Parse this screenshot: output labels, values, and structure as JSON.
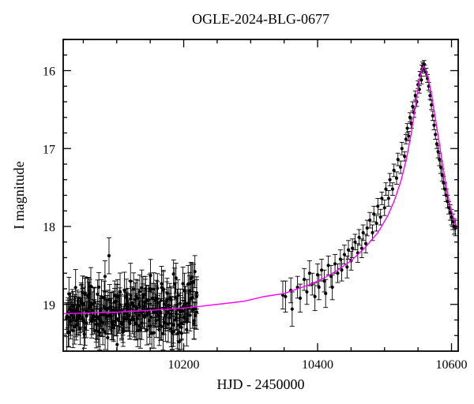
{
  "chart": {
    "type": "scatter+line",
    "title": "OGLE-2024-BLG-0677",
    "title_fontsize": 18,
    "xlabel": "HJD - 2450000",
    "ylabel": "I magnitude",
    "axis_label_fontsize": 18,
    "tick_label_fontsize": 16,
    "xlim": [
      10020,
      10610
    ],
    "ylim": [
      19.6,
      15.6
    ],
    "xticks_major": [
      10200,
      10400,
      10600
    ],
    "xticks_minor_step": 50,
    "yticks_major": [
      16,
      17,
      18,
      19
    ],
    "yticks_minor_step": 0.2,
    "background_color": "#ffffff",
    "frame_color": "#000000",
    "frame_width": 1.8,
    "major_tick_len": 10,
    "minor_tick_len": 5,
    "model_curve": {
      "color": "#ff00ff",
      "width": 1.4,
      "points": [
        [
          10020,
          19.12
        ],
        [
          10060,
          19.11
        ],
        [
          10100,
          19.1
        ],
        [
          10140,
          19.08
        ],
        [
          10180,
          19.06
        ],
        [
          10210,
          19.04
        ],
        [
          10250,
          19.0
        ],
        [
          10290,
          18.96
        ],
        [
          10320,
          18.9
        ],
        [
          10350,
          18.86
        ],
        [
          10370,
          18.8
        ],
        [
          10390,
          18.74
        ],
        [
          10410,
          18.66
        ],
        [
          10430,
          18.56
        ],
        [
          10450,
          18.44
        ],
        [
          10470,
          18.28
        ],
        [
          10490,
          18.08
        ],
        [
          10505,
          17.86
        ],
        [
          10515,
          17.66
        ],
        [
          10525,
          17.4
        ],
        [
          10533,
          17.12
        ],
        [
          10540,
          16.8
        ],
        [
          10546,
          16.46
        ],
        [
          10551,
          16.18
        ],
        [
          10555,
          16.0
        ],
        [
          10558,
          15.94
        ],
        [
          10561,
          15.98
        ],
        [
          10565,
          16.08
        ],
        [
          10570,
          16.3
        ],
        [
          10576,
          16.62
        ],
        [
          10583,
          17.0
        ],
        [
          10590,
          17.38
        ],
        [
          10597,
          17.7
        ],
        [
          10604,
          17.92
        ],
        [
          10610,
          18.04
        ]
      ]
    },
    "data_points": {
      "marker_color": "#000000",
      "marker_radius": 2.1,
      "errorbar_color": "#000000",
      "errorbar_width": 0.9,
      "errorbar_cap": 3,
      "cluster_dense": {
        "x_start": 10025,
        "x_end": 10220,
        "x_step": 2,
        "n_per_x": 3,
        "base_line_from_model": true,
        "scatter_sigma": 0.18,
        "yerr": 0.2
      },
      "explicit": [
        [
          10348,
          18.88,
          0.18
        ],
        [
          10352,
          18.9,
          0.2
        ],
        [
          10360,
          18.82,
          0.16
        ],
        [
          10362,
          19.06,
          0.22
        ],
        [
          10370,
          18.78,
          0.14
        ],
        [
          10374,
          18.92,
          0.18
        ],
        [
          10380,
          18.68,
          0.14
        ],
        [
          10384,
          18.84,
          0.16
        ],
        [
          10388,
          18.6,
          0.16
        ],
        [
          10392,
          18.74,
          0.14
        ],
        [
          10396,
          18.9,
          0.18
        ],
        [
          10400,
          18.62,
          0.14
        ],
        [
          10402,
          18.78,
          0.16
        ],
        [
          10406,
          18.56,
          0.14
        ],
        [
          10410,
          18.7,
          0.14
        ],
        [
          10412,
          18.86,
          0.18
        ],
        [
          10416,
          18.5,
          0.12
        ],
        [
          10420,
          18.64,
          0.14
        ],
        [
          10422,
          18.78,
          0.16
        ],
        [
          10426,
          18.48,
          0.12
        ],
        [
          10430,
          18.6,
          0.12
        ],
        [
          10434,
          18.42,
          0.12
        ],
        [
          10436,
          18.56,
          0.14
        ],
        [
          10440,
          18.36,
          0.12
        ],
        [
          10444,
          18.52,
          0.14
        ],
        [
          10446,
          18.3,
          0.12
        ],
        [
          10450,
          18.44,
          0.12
        ],
        [
          10452,
          18.28,
          0.12
        ],
        [
          10456,
          18.2,
          0.1
        ],
        [
          10460,
          18.34,
          0.12
        ],
        [
          10462,
          18.14,
          0.1
        ],
        [
          10466,
          18.28,
          0.12
        ],
        [
          10468,
          18.08,
          0.1
        ],
        [
          10472,
          18.22,
          0.12
        ],
        [
          10474,
          18.02,
          0.1
        ],
        [
          10478,
          17.92,
          0.1
        ],
        [
          10482,
          18.08,
          0.1
        ],
        [
          10484,
          17.84,
          0.1
        ],
        [
          10488,
          17.96,
          0.1
        ],
        [
          10490,
          17.74,
          0.1
        ],
        [
          10494,
          17.88,
          0.1
        ],
        [
          10496,
          17.64,
          0.08
        ],
        [
          10500,
          17.76,
          0.1
        ],
        [
          10502,
          17.52,
          0.08
        ],
        [
          10506,
          17.64,
          0.1
        ],
        [
          10508,
          17.4,
          0.08
        ],
        [
          10512,
          17.52,
          0.08
        ],
        [
          10514,
          17.28,
          0.08
        ],
        [
          10518,
          17.38,
          0.08
        ],
        [
          10520,
          17.14,
          0.08
        ],
        [
          10524,
          17.24,
          0.08
        ],
        [
          10526,
          17.0,
          0.08
        ],
        [
          10530,
          17.1,
          0.06
        ],
        [
          10532,
          16.88,
          0.06
        ],
        [
          10534,
          16.74,
          0.06
        ],
        [
          10536,
          16.84,
          0.06
        ],
        [
          10538,
          16.6,
          0.06
        ],
        [
          10540,
          16.68,
          0.06
        ],
        [
          10542,
          16.46,
          0.06
        ],
        [
          10544,
          16.54,
          0.06
        ],
        [
          10546,
          16.32,
          0.06
        ],
        [
          10548,
          16.4,
          0.06
        ],
        [
          10550,
          16.18,
          0.05
        ],
        [
          10552,
          16.24,
          0.05
        ],
        [
          10553,
          16.06,
          0.05
        ],
        [
          10555,
          16.12,
          0.05
        ],
        [
          10556,
          15.98,
          0.05
        ],
        [
          10557,
          15.94,
          0.05
        ],
        [
          10558,
          15.96,
          0.05
        ],
        [
          10559,
          15.92,
          0.05
        ],
        [
          10560,
          15.98,
          0.05
        ],
        [
          10562,
          16.02,
          0.05
        ],
        [
          10564,
          16.1,
          0.05
        ],
        [
          10566,
          16.2,
          0.05
        ],
        [
          10568,
          16.32,
          0.05
        ],
        [
          10570,
          16.44,
          0.06
        ],
        [
          10572,
          16.58,
          0.06
        ],
        [
          10574,
          16.7,
          0.06
        ],
        [
          10576,
          16.82,
          0.06
        ],
        [
          10578,
          16.94,
          0.06
        ],
        [
          10580,
          17.04,
          0.08
        ],
        [
          10582,
          17.14,
          0.08
        ],
        [
          10584,
          17.24,
          0.08
        ],
        [
          10586,
          17.34,
          0.08
        ],
        [
          10588,
          17.44,
          0.08
        ],
        [
          10590,
          17.52,
          0.08
        ],
        [
          10592,
          17.6,
          0.08
        ],
        [
          10594,
          17.68,
          0.08
        ],
        [
          10596,
          17.76,
          0.08
        ],
        [
          10598,
          17.82,
          0.1
        ],
        [
          10600,
          17.88,
          0.1
        ],
        [
          10602,
          17.94,
          0.1
        ],
        [
          10604,
          18.0,
          0.1
        ],
        [
          10606,
          18.02,
          0.1
        ]
      ]
    }
  }
}
